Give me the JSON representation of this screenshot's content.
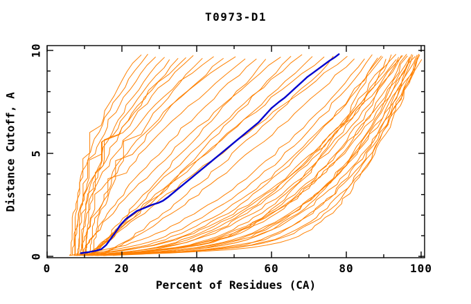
{
  "title": "T0973-D1",
  "colors": {
    "background": "#ffffff",
    "axis": "#000000",
    "text": "#000000",
    "model_orange": "#ff8000",
    "highlight_blue": "#0000cd"
  },
  "chart_data": {
    "type": "line",
    "title": "T0973-D1",
    "xlabel": "Percent of Residues (CA)",
    "ylabel": "Distance Cutoff, A",
    "xlim": [
      0,
      100
    ],
    "ylim": [
      0,
      10
    ],
    "grid": false,
    "legend": "none",
    "x_axis": {
      "major_ticks": [
        0,
        20,
        40,
        60,
        80,
        100
      ],
      "major_tick_labels": [
        "0",
        "20",
        "40",
        "60",
        "80",
        "100"
      ],
      "minor_ticks": [
        10,
        30,
        50,
        70,
        90
      ]
    },
    "y_axis": {
      "major_ticks": [
        0,
        5,
        10
      ],
      "major_tick_labels": [
        "0",
        "5",
        "10"
      ],
      "minor_ticks": [
        1,
        2,
        3,
        4,
        6,
        7,
        8,
        9
      ],
      "tick_labels_rotated": true
    },
    "highlighted_series": {
      "name": "highlighted-model",
      "color": "#0000cd",
      "line_width": 2.4,
      "points_percent_vs_cutoff": [
        [
          9,
          0.15
        ],
        [
          11,
          0.2
        ],
        [
          13,
          0.27
        ],
        [
          14.5,
          0.35
        ],
        [
          15.8,
          0.55
        ],
        [
          17,
          0.85
        ],
        [
          18.2,
          1.15
        ],
        [
          19.5,
          1.5
        ],
        [
          21,
          1.8
        ],
        [
          22.5,
          2.0
        ],
        [
          24,
          2.2
        ],
        [
          26,
          2.35
        ],
        [
          28,
          2.5
        ],
        [
          29.8,
          2.6
        ],
        [
          31,
          2.7
        ],
        [
          32.5,
          2.9
        ],
        [
          34.5,
          3.2
        ],
        [
          36.5,
          3.5
        ],
        [
          38.5,
          3.8
        ],
        [
          40.5,
          4.1
        ],
        [
          42.5,
          4.4
        ],
        [
          44.5,
          4.7
        ],
        [
          46.5,
          5.0
        ],
        [
          48.5,
          5.3
        ],
        [
          50.5,
          5.6
        ],
        [
          52.5,
          5.9
        ],
        [
          54.5,
          6.2
        ],
        [
          56.5,
          6.5
        ],
        [
          58.5,
          6.9
        ],
        [
          60,
          7.2
        ],
        [
          61,
          7.35
        ],
        [
          62,
          7.5
        ],
        [
          63.5,
          7.7
        ],
        [
          65,
          7.95
        ],
        [
          66.5,
          8.2
        ],
        [
          68,
          8.45
        ],
        [
          69.5,
          8.7
        ],
        [
          71,
          8.9
        ],
        [
          72.5,
          9.1
        ],
        [
          74,
          9.3
        ],
        [
          75.5,
          9.5
        ],
        [
          76.8,
          9.65
        ],
        [
          78,
          9.82
        ]
      ]
    },
    "background_series": {
      "name": "other-models",
      "color": "#ff8000",
      "line_width": 1,
      "count": 48,
      "curve_params_note": "each curve approximated as [start_percent_at_cutoff0, percent_at_cutoff_top, shape_exponent]; exponent>1 = steep-left curve, <1 = bottom-hugging curve",
      "curves": [
        [
          7,
          25,
          2.2
        ],
        [
          6,
          27,
          2.0
        ],
        [
          8,
          29,
          2.3
        ],
        [
          7,
          31,
          1.8
        ],
        [
          9,
          33,
          2.1
        ],
        [
          6.5,
          35,
          1.7
        ],
        [
          10,
          37,
          2.2
        ],
        [
          8,
          39,
          1.9
        ],
        [
          11,
          41,
          1.6
        ],
        [
          9,
          44,
          2.0
        ],
        [
          12,
          47,
          1.75
        ],
        [
          10,
          50,
          1.9
        ],
        [
          8.5,
          53,
          1.5
        ],
        [
          10,
          56,
          1.3
        ],
        [
          12,
          59,
          1.05
        ],
        [
          9,
          62,
          1.2
        ],
        [
          11,
          65,
          0.9
        ],
        [
          13,
          68,
          1.15
        ],
        [
          10,
          71,
          0.95
        ],
        [
          12,
          74,
          1.1
        ],
        [
          14,
          77,
          0.85
        ],
        [
          11,
          80,
          1.0
        ],
        [
          13,
          82,
          0.8
        ],
        [
          5,
          85,
          0.55
        ],
        [
          6,
          87,
          0.5
        ],
        [
          7,
          89,
          0.45
        ],
        [
          8,
          90,
          0.5
        ],
        [
          9,
          91,
          0.42
        ],
        [
          10,
          92,
          0.36
        ],
        [
          6,
          93,
          0.45
        ],
        [
          7,
          94,
          0.32
        ],
        [
          8,
          95,
          0.4
        ],
        [
          9,
          96,
          0.33
        ],
        [
          10,
          96,
          0.27
        ],
        [
          11,
          97,
          0.38
        ],
        [
          12,
          97,
          0.3
        ],
        [
          13,
          98,
          0.25
        ],
        [
          7,
          98,
          0.35
        ],
        [
          8,
          99,
          0.3
        ],
        [
          9,
          99,
          0.22
        ],
        [
          10,
          99.5,
          0.32
        ],
        [
          11,
          100,
          0.26
        ],
        [
          12,
          100,
          0.3
        ],
        [
          5,
          99,
          0.2
        ],
        [
          6,
          97,
          0.17
        ],
        [
          13,
          95,
          0.5
        ],
        [
          14,
          93,
          0.45
        ],
        [
          4.5,
          88,
          0.28
        ]
      ]
    }
  }
}
